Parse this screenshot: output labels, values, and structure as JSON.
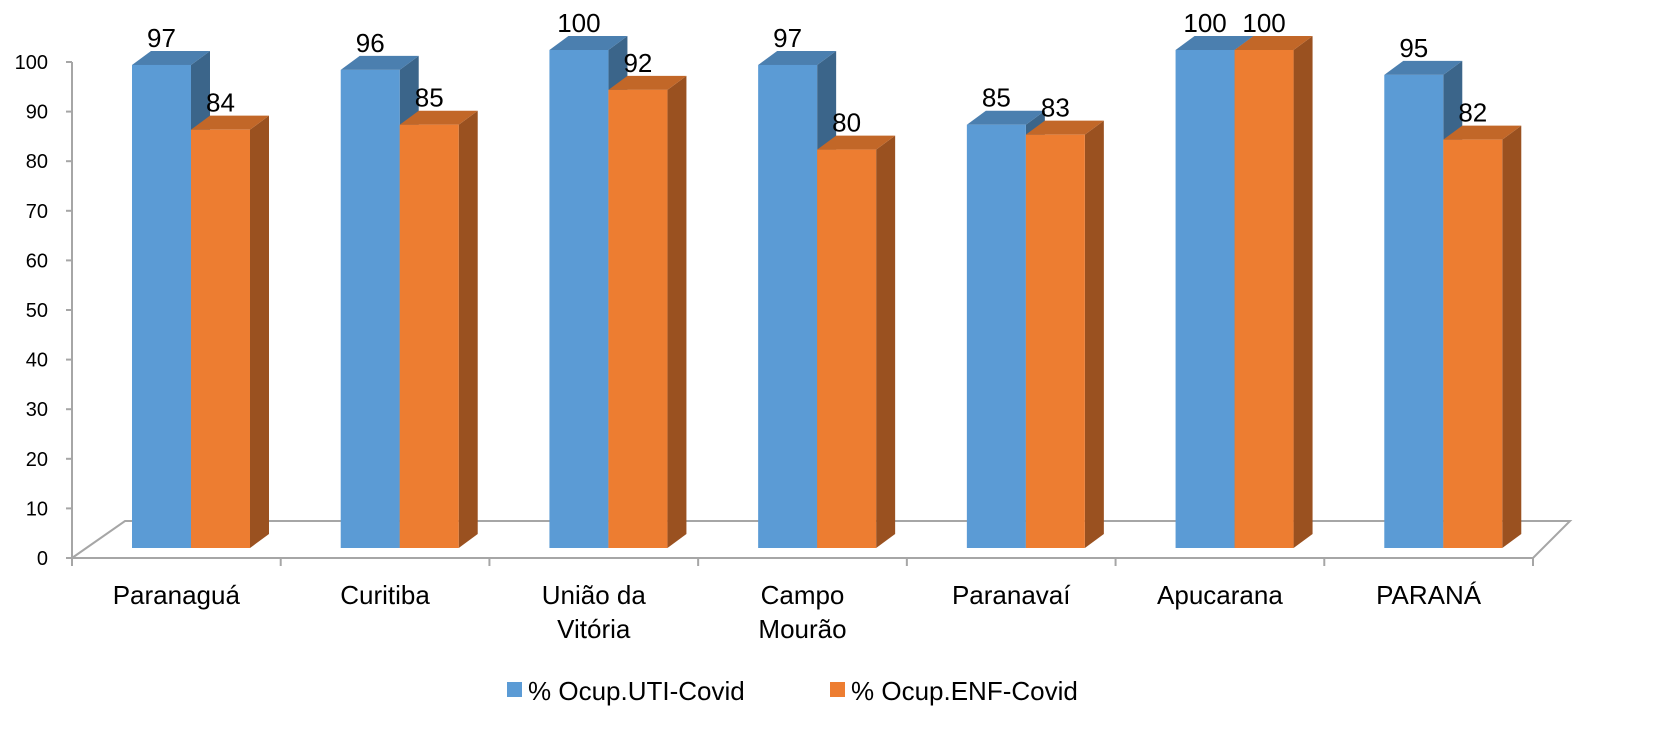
{
  "chart_data": {
    "type": "bar3d",
    "categories": [
      "Paranaguá",
      "Curitiba",
      "União da Vitória",
      "Campo Mourão",
      "Paranavaí",
      "Apucarana",
      "PARANÁ"
    ],
    "series": [
      {
        "name": "% Ocup.UTI-Covid",
        "color": "#5b9bd5",
        "values": [
          97,
          96,
          100,
          97,
          85,
          100,
          95
        ]
      },
      {
        "name": "% Ocup.ENF-Covid",
        "color": "#ed7d31",
        "values": [
          84,
          85,
          92,
          80,
          83,
          100,
          82
        ]
      }
    ],
    "ylim": [
      0,
      100
    ],
    "yticks": [
      0,
      10,
      20,
      30,
      40,
      50,
      60,
      70,
      80,
      90,
      100
    ],
    "legend": "bottom"
  }
}
